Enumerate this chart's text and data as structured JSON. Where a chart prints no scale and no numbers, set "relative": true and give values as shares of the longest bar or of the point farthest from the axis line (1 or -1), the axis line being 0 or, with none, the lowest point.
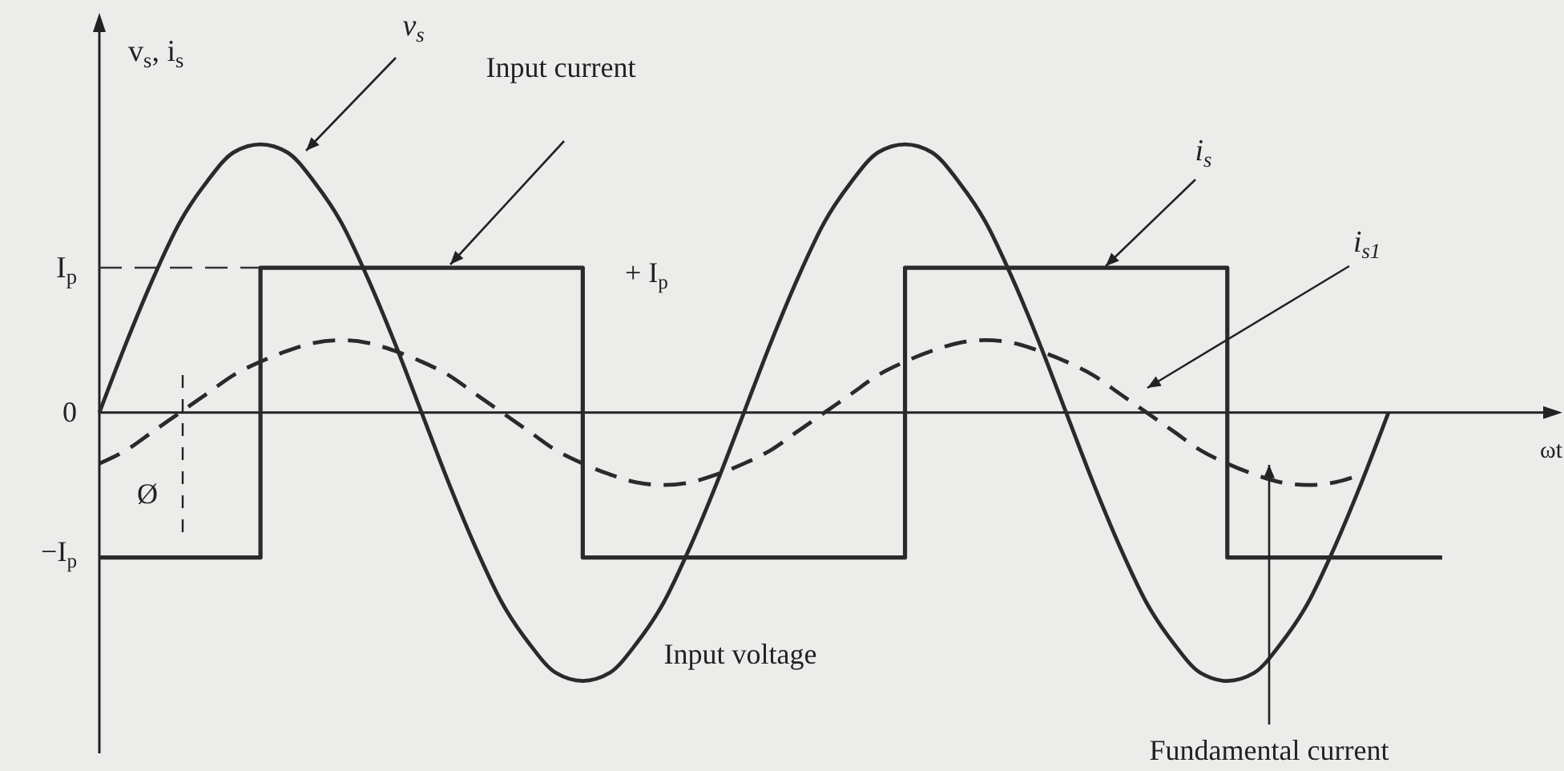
{
  "chart_data": {
    "type": "line",
    "relative": true,
    "xlabel": "ωt",
    "ylabel": "v$_{s}$, i$_{s}$",
    "categories": [
      null,
      null,
      null,
      null,
      null,
      null,
      null,
      null,
      null,
      null,
      null,
      null,
      null,
      null,
      null,
      null,
      null,
      null,
      null,
      null,
      null,
      null,
      null,
      null,
      null,
      null,
      null,
      null,
      null,
      null,
      null,
      null,
      null,
      null,
      null,
      null,
      null,
      null,
      null,
      null,
      null,
      null,
      null,
      null,
      null,
      null,
      null,
      null,
      null,
      null,
      null,
      null,
      null,
      null,
      null
    ],
    "ref_lines": [
      {
        "axis": "y",
        "value": 0.54,
        "label": "I$_{p}$",
        "line_style": "dashed",
        "color": "#333333"
      }
    ],
    "series": [
      {
        "name": "v$_{s}$",
        "type": "line",
        "color": "#2a2a2a",
        "line_style": "solid",
        "values": [
          0,
          0.26,
          0.5,
          0.71,
          0.86,
          0.97,
          1,
          0.97,
          0.86,
          0.71,
          0.5,
          0.26,
          0,
          -0.26,
          -0.5,
          -0.71,
          -0.86,
          -0.97,
          -1,
          -0.97,
          -0.86,
          -0.71,
          -0.5,
          -0.26,
          0,
          0.26,
          0.5,
          0.71,
          0.86,
          0.97,
          1,
          0.97,
          0.86,
          0.71,
          0.5,
          0.26,
          0,
          -0.26,
          -0.5,
          -0.71,
          -0.86,
          -0.97,
          -1,
          -0.97,
          -0.86,
          -0.71,
          -0.5,
          -0.26,
          0,
          null,
          null,
          null,
          null,
          null,
          null
        ]
      },
      {
        "name": "i$_{s}$",
        "type": "step",
        "color": "#2a2a2a",
        "line_style": "solid",
        "values": [
          -0.54,
          -0.54,
          -0.54,
          -0.54,
          -0.54,
          -0.54,
          0.54,
          0.54,
          0.54,
          0.54,
          0.54,
          0.54,
          0.54,
          0.54,
          0.54,
          0.54,
          0.54,
          0.54,
          -0.54,
          -0.54,
          -0.54,
          -0.54,
          -0.54,
          -0.54,
          -0.54,
          -0.54,
          -0.54,
          -0.54,
          -0.54,
          -0.54,
          0.54,
          0.54,
          0.54,
          0.54,
          0.54,
          0.54,
          0.54,
          0.54,
          0.54,
          0.54,
          0.54,
          0.54,
          -0.54,
          -0.54,
          -0.54,
          -0.54,
          -0.54,
          -0.54,
          -0.54,
          -0.54,
          -0.54,
          null,
          null,
          null,
          null
        ]
      },
      {
        "name": "i$_{s1}$",
        "type": "line",
        "color": "#2a2a2a",
        "line_style": "dashed",
        "values": [
          -0.19,
          -0.14,
          -0.07,
          0,
          0.07,
          0.14,
          0.19,
          0.23,
          0.26,
          0.27,
          0.26,
          0.23,
          0.19,
          0.14,
          0.07,
          0,
          -0.07,
          -0.14,
          -0.19,
          -0.23,
          -0.26,
          -0.27,
          -0.26,
          -0.23,
          -0.19,
          -0.14,
          -0.07,
          0,
          0.07,
          0.14,
          0.19,
          0.23,
          0.26,
          0.27,
          0.26,
          0.23,
          0.19,
          0.14,
          0.07,
          0,
          -0.07,
          -0.14,
          -0.19,
          -0.23,
          -0.26,
          -0.27,
          -0.26,
          -0.23,
          null,
          null,
          null,
          null,
          null,
          null,
          null
        ]
      }
    ],
    "annotations": [
      "0",
      "−I$_{p}$",
      "Input current",
      "+ I$_{p}$",
      "Input voltage",
      "Fundamental current",
      "Ø"
    ]
  }
}
